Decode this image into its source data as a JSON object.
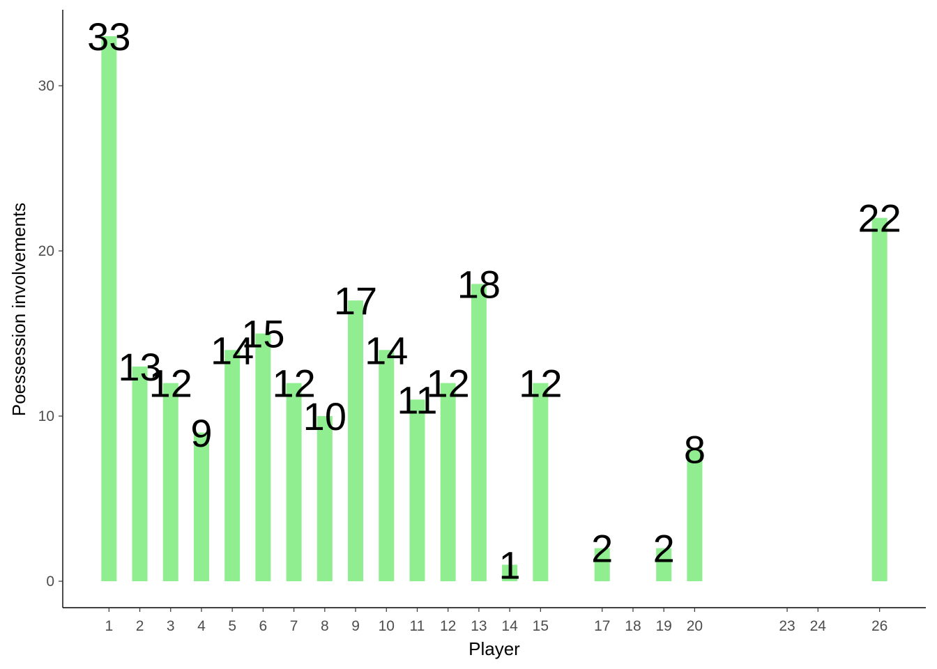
{
  "chart_data": {
    "type": "bar",
    "title": "",
    "xlabel": "Player",
    "ylabel": "Poessession involvements",
    "x": [
      1,
      2,
      3,
      4,
      5,
      6,
      7,
      8,
      9,
      10,
      11,
      12,
      13,
      14,
      15,
      17,
      19,
      20,
      26
    ],
    "values": [
      33,
      13,
      12,
      9,
      14,
      15,
      12,
      10,
      17,
      14,
      11,
      12,
      18,
      1,
      12,
      2,
      2,
      8,
      22
    ],
    "x_ticks": [
      1,
      2,
      3,
      4,
      5,
      6,
      7,
      8,
      9,
      10,
      11,
      12,
      13,
      14,
      15,
      17,
      18,
      19,
      20,
      23,
      24,
      26
    ],
    "y_ticks": [
      0,
      10,
      20,
      30
    ],
    "xlim": [
      -0.5,
      27.5
    ],
    "ylim": [
      -1.6,
      34.6
    ],
    "bar_color": "#90EE90",
    "grid": false,
    "legend": "none"
  }
}
